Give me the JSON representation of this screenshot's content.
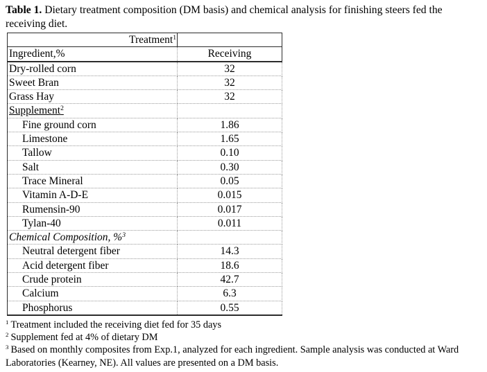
{
  "title": {
    "bold": "Table 1.",
    "rest": " Dietary treatment composition (DM basis) and chemical analysis for finishing steers fed the receiving diet."
  },
  "table": {
    "treatment_header": {
      "label": "Treatment",
      "sup": "1"
    },
    "columns": {
      "ingredient": "Ingredient,%",
      "receiving": "Receiving"
    },
    "rows": [
      {
        "label": "Dry-rolled corn",
        "sup": "",
        "value": "32",
        "indent": false,
        "underline": false,
        "italic": false
      },
      {
        "label": "Sweet Bran",
        "sup": "",
        "value": "32",
        "indent": false,
        "underline": false,
        "italic": false
      },
      {
        "label": "Grass Hay",
        "sup": "",
        "value": "32",
        "indent": false,
        "underline": false,
        "italic": false
      },
      {
        "label": "Supplement",
        "sup": "2",
        "value": "",
        "indent": false,
        "underline": true,
        "italic": false
      },
      {
        "label": "Fine ground corn",
        "sup": "",
        "value": "1.86",
        "indent": true,
        "underline": false,
        "italic": false
      },
      {
        "label": "Limestone",
        "sup": "",
        "value": "1.65",
        "indent": true,
        "underline": false,
        "italic": false
      },
      {
        "label": "Tallow",
        "sup": "",
        "value": "0.10",
        "indent": true,
        "underline": false,
        "italic": false
      },
      {
        "label": "Salt",
        "sup": "",
        "value": "0.30",
        "indent": true,
        "underline": false,
        "italic": false
      },
      {
        "label": "Trace Mineral",
        "sup": "",
        "value": "0.05",
        "indent": true,
        "underline": false,
        "italic": false
      },
      {
        "label": "Vitamin A-D-E",
        "sup": "",
        "value": "0.015",
        "indent": true,
        "underline": false,
        "italic": false
      },
      {
        "label": "Rumensin-90",
        "sup": "",
        "value": "0.017",
        "indent": true,
        "underline": false,
        "italic": false
      },
      {
        "label": "Tylan-40",
        "sup": "",
        "value": "0.011",
        "indent": true,
        "underline": false,
        "italic": false
      },
      {
        "label": "Chemical Composition, %",
        "sup": "3",
        "value": "",
        "indent": false,
        "underline": false,
        "italic": true
      },
      {
        "label": "Neutral detergent fiber",
        "sup": "",
        "value": "14.3",
        "indent": true,
        "underline": false,
        "italic": false
      },
      {
        "label": "Acid detergent fiber",
        "sup": "",
        "value": "18.6",
        "indent": true,
        "underline": false,
        "italic": false
      },
      {
        "label": "Crude protein",
        "sup": "",
        "value": "42.7",
        "indent": true,
        "underline": false,
        "italic": false
      },
      {
        "label": "Calcium",
        "sup": "",
        "value": "6.3",
        "indent": true,
        "underline": false,
        "italic": false
      },
      {
        "label": "Phosphorus",
        "sup": "",
        "value": "0.55",
        "indent": true,
        "underline": false,
        "italic": false
      }
    ]
  },
  "footnotes": [
    {
      "sup": "1",
      "text": "Treatment included the receiving diet fed for 35 days"
    },
    {
      "sup": "2",
      "text": "Supplement fed at 4% of dietary DM"
    },
    {
      "sup": "3",
      "text": "Based on monthly composites from Exp.1, analyzed for each ingredient. Sample analysis was conducted at Ward Laboratories (Kearney, NE). All values are presented on a DM basis."
    }
  ],
  "colors": {
    "text": "#000000",
    "background": "#ffffff",
    "solid_border": "#2b2b2b",
    "dotted_border": "#9a9a9a"
  }
}
